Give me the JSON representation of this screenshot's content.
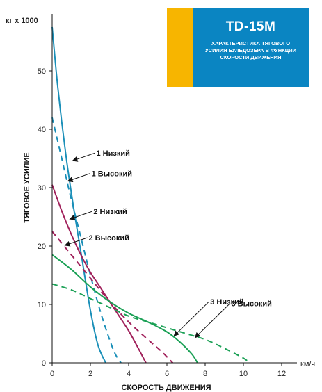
{
  "title_box": {
    "model": "TD-15M",
    "description": "ХАРАКТЕРИСТИКА ТЯГОВОГО УСИЛИЯ БУЛЬДОЗЕРА В ФУНКЦИИ СКОРОСТИ ДВИЖЕНИЯ",
    "accent_color": "#f7b500",
    "panel_color": "#0a85c2"
  },
  "chart_data": {
    "type": "line",
    "xlabel": "СКОРОСТЬ ДВИЖЕНИЯ",
    "ylabel": "ТЯГОВОЕ УСИЛИЕ",
    "x_unit": "км/ч",
    "y_unit": "кг х 1000",
    "xlim": [
      0,
      12.8
    ],
    "ylim": [
      0,
      60
    ],
    "x_ticks": [
      0,
      2,
      4,
      6,
      8,
      10,
      12
    ],
    "y_ticks": [
      0,
      10,
      20,
      30,
      40,
      50
    ],
    "grid": false,
    "series": [
      {
        "name": "1 Низкий",
        "color": "#1a8fb8",
        "dash": false,
        "x": [
          0,
          0.3,
          0.7,
          1.1,
          1.5,
          2.0,
          2.4,
          2.8
        ],
        "y": [
          57.5,
          47,
          36,
          27,
          19,
          9,
          3,
          0
        ]
      },
      {
        "name": "1 Высокий",
        "color": "#1a8fb8",
        "dash": true,
        "x": [
          0,
          0.5,
          1.0,
          1.5,
          2.0,
          2.5,
          3.0,
          3.3,
          3.6
        ],
        "y": [
          42,
          35,
          28,
          21.5,
          15,
          9,
          4,
          1.5,
          0
        ]
      },
      {
        "name": "2 Низкий",
        "color": "#a0205a",
        "dash": false,
        "x": [
          0,
          0.5,
          1.0,
          1.5,
          2.0,
          2.5,
          3.0,
          3.5,
          4.0,
          4.5,
          4.9
        ],
        "y": [
          30.5,
          26,
          22,
          18.5,
          15.5,
          13,
          10.5,
          8,
          5.5,
          2.5,
          0
        ]
      },
      {
        "name": "2 Высокий",
        "color": "#a0205a",
        "dash": true,
        "x": [
          0,
          1.0,
          2.0,
          3.0,
          4.0,
          5.0,
          5.7,
          6.3
        ],
        "y": [
          22.5,
          18.5,
          14.5,
          10.5,
          7,
          4,
          2,
          0
        ]
      },
      {
        "name": "3 Низкий",
        "color": "#1aa055",
        "dash": false,
        "x": [
          0,
          1.0,
          2.0,
          3.0,
          4.0,
          5.0,
          6.0,
          6.7,
          7.3,
          7.6
        ],
        "y": [
          18.5,
          16,
          13,
          10.5,
          8.5,
          7,
          5.3,
          3.5,
          1.5,
          0
        ]
      },
      {
        "name": "3 Высокий",
        "color": "#1aa055",
        "dash": true,
        "x": [
          0,
          1.0,
          2.0,
          3.0,
          4.0,
          5.0,
          6.0,
          7.0,
          8.0,
          9.0,
          10.0,
          10.3
        ],
        "y": [
          13.5,
          12.5,
          11,
          9.5,
          8,
          7,
          6,
          5,
          4,
          2.5,
          0.8,
          0
        ]
      }
    ],
    "annotations": [
      {
        "text": "1 Низкий",
        "series": "1 Низкий",
        "at_x": 1.0,
        "at_y": 34.5,
        "side": "right"
      },
      {
        "text": "1 Высокий",
        "series": "1 Высокий",
        "at_x": 0.75,
        "at_y": 31,
        "side": "right"
      },
      {
        "text": "2 Низкий",
        "series": "2 Низкий",
        "at_x": 0.85,
        "at_y": 24.5,
        "side": "right"
      },
      {
        "text": "2 Высокий",
        "series": "2 Высокий",
        "at_x": 0.6,
        "at_y": 20,
        "side": "right"
      },
      {
        "text": "3 Низкий",
        "series": "3 Низкий",
        "at_x": 6.3,
        "at_y": 4.5,
        "side": "upper"
      },
      {
        "text": "3 Высокий",
        "series": "3 Высокий",
        "at_x": 7.4,
        "at_y": 4.2,
        "side": "upper"
      }
    ]
  }
}
